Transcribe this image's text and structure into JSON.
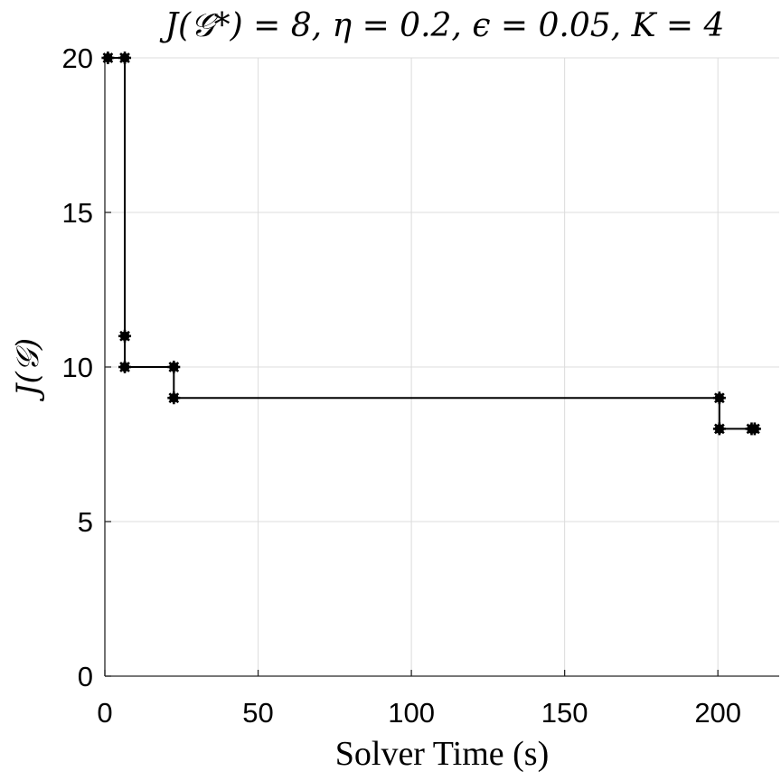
{
  "chart_data": {
    "type": "line",
    "title": "J(𝒢*) = 8, η = 0.2, ϵ = 0.05, K = 4",
    "xlabel": "Solver Time (s)",
    "ylabel": "J(𝒢)",
    "xlim": [
      0,
      220
    ],
    "ylim": [
      0,
      20
    ],
    "x_ticks": [
      0,
      50,
      100,
      150,
      200
    ],
    "y_ticks": [
      0,
      5,
      10,
      15,
      20
    ],
    "x_tick_labels": [
      "0",
      "50",
      "100",
      "150",
      "200"
    ],
    "y_tick_labels": [
      "0",
      "5",
      "10",
      "15",
      "20"
    ],
    "grid": true,
    "step": true,
    "color": "#000000",
    "marker": "asterisk-circle",
    "series": [
      {
        "points": [
          {
            "x": 1,
            "y": 20
          },
          {
            "x": 6.5,
            "y": 20
          },
          {
            "x": 6.5,
            "y": 11
          },
          {
            "x": 6.5,
            "y": 10
          },
          {
            "x": 22.5,
            "y": 10
          },
          {
            "x": 22.5,
            "y": 9
          },
          {
            "x": 200.5,
            "y": 9
          },
          {
            "x": 200.5,
            "y": 8
          },
          {
            "x": 211,
            "y": 8
          },
          {
            "x": 212,
            "y": 8
          }
        ]
      }
    ]
  }
}
